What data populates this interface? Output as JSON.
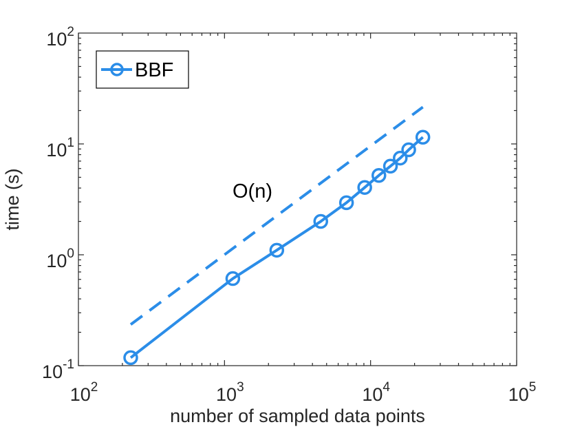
{
  "chart_data": {
    "type": "line",
    "xlabel": "number of sampled data points",
    "ylabel": "time (s)",
    "xscale": "log",
    "yscale": "log",
    "xlim": [
      100,
      100000
    ],
    "ylim": [
      0.1,
      100
    ],
    "grid": false,
    "legend_position": "top-left",
    "x_ticks": [
      {
        "value": 100,
        "base": "10",
        "exp": "2"
      },
      {
        "value": 1000,
        "base": "10",
        "exp": "3"
      },
      {
        "value": 10000,
        "base": "10",
        "exp": "4"
      },
      {
        "value": 100000,
        "base": "10",
        "exp": "5"
      }
    ],
    "y_ticks": [
      {
        "value": 0.1,
        "base": "10",
        "exp": "-1"
      },
      {
        "value": 1,
        "base": "10",
        "exp": "0"
      },
      {
        "value": 10,
        "base": "10",
        "exp": "1"
      },
      {
        "value": 100,
        "base": "10",
        "exp": "2"
      }
    ],
    "series": [
      {
        "name": "BBF",
        "style": "solid",
        "marker": "circle",
        "color": "#2b8de8",
        "x": [
          228,
          1140,
          2280,
          4560,
          6840,
          9120,
          11400,
          13680,
          15960,
          18240,
          22800
        ],
        "y": [
          0.118,
          0.61,
          1.1,
          2.0,
          2.95,
          4.05,
          5.2,
          6.3,
          7.45,
          8.85,
          11.5
        ]
      }
    ],
    "reference_line": {
      "label": "O(n)",
      "style": "dashed",
      "color": "#2b8de8",
      "x": [
        228,
        22800
      ],
      "y": [
        0.235,
        21.5
      ]
    }
  }
}
